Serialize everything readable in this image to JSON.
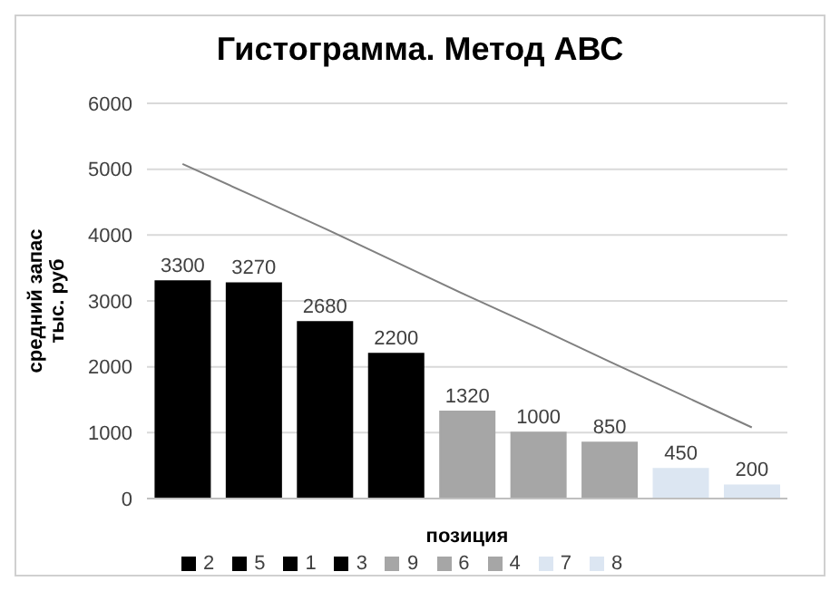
{
  "chart_data": {
    "type": "bar",
    "title": "Гистограмма. Метод АВС",
    "xlabel": "позиция",
    "ylabel": "средний запас тыс. руб",
    "categories": [
      null,
      null,
      null,
      null,
      null,
      null,
      null,
      null,
      null
    ],
    "stacked": true,
    "series": [
      {
        "name": "2",
        "color": "#000000",
        "values": [
          3300,
          null,
          null,
          null,
          null,
          null,
          null,
          null,
          null
        ],
        "value_labels": [
          "3300",
          null,
          null,
          null,
          null,
          null,
          null,
          null,
          null
        ]
      },
      {
        "name": "5",
        "color": "#000000",
        "values": [
          null,
          3270,
          null,
          null,
          null,
          null,
          null,
          null,
          null
        ],
        "value_labels": [
          null,
          "3270",
          null,
          null,
          null,
          null,
          null,
          null,
          null
        ]
      },
      {
        "name": "1",
        "color": "#000000",
        "values": [
          null,
          null,
          2680,
          null,
          null,
          null,
          null,
          null,
          null
        ],
        "value_labels": [
          null,
          null,
          "2680",
          null,
          null,
          null,
          null,
          null,
          null
        ]
      },
      {
        "name": "3",
        "color": "#000000",
        "values": [
          null,
          null,
          null,
          2200,
          null,
          null,
          null,
          null,
          null
        ],
        "value_labels": [
          null,
          null,
          null,
          "2200",
          null,
          null,
          null,
          null,
          null
        ]
      },
      {
        "name": "9",
        "color": "#a6a6a6",
        "values": [
          null,
          null,
          null,
          null,
          1320,
          null,
          null,
          null,
          null
        ],
        "value_labels": [
          null,
          null,
          null,
          null,
          "1320",
          null,
          null,
          null,
          null
        ]
      },
      {
        "name": "6",
        "color": "#a6a6a6",
        "values": [
          null,
          null,
          null,
          null,
          null,
          1000,
          null,
          null,
          null
        ],
        "value_labels": [
          null,
          null,
          null,
          null,
          null,
          "1000",
          null,
          null,
          null
        ]
      },
      {
        "name": "4",
        "color": "#a6a6a6",
        "values": [
          null,
          null,
          null,
          null,
          null,
          null,
          850,
          null,
          null
        ],
        "value_labels": [
          null,
          null,
          null,
          null,
          null,
          null,
          "850",
          null,
          null
        ]
      },
      {
        "name": "7",
        "color": "#dce6f2",
        "values": [
          null,
          null,
          null,
          null,
          null,
          null,
          null,
          450,
          null
        ],
        "value_labels": [
          null,
          null,
          null,
          null,
          null,
          null,
          null,
          "450",
          null
        ]
      },
      {
        "name": "8",
        "color": "#dce6f2",
        "values": [
          null,
          null,
          null,
          null,
          null,
          null,
          null,
          null,
          200
        ],
        "value_labels": [
          null,
          null,
          null,
          null,
          null,
          null,
          null,
          null,
          "200"
        ]
      },
      {
        "type": "line",
        "color": "#808080",
        "values": [
          5080,
          4590,
          4100,
          3590,
          3080,
          2590,
          2080,
          1580,
          1080
        ]
      }
    ],
    "ylim": [
      0,
      6000
    ],
    "yticks": [
      0,
      1000,
      2000,
      3000,
      4000,
      5000,
      6000
    ],
    "grid": "y",
    "legend": "bottom",
    "marker": "none"
  }
}
